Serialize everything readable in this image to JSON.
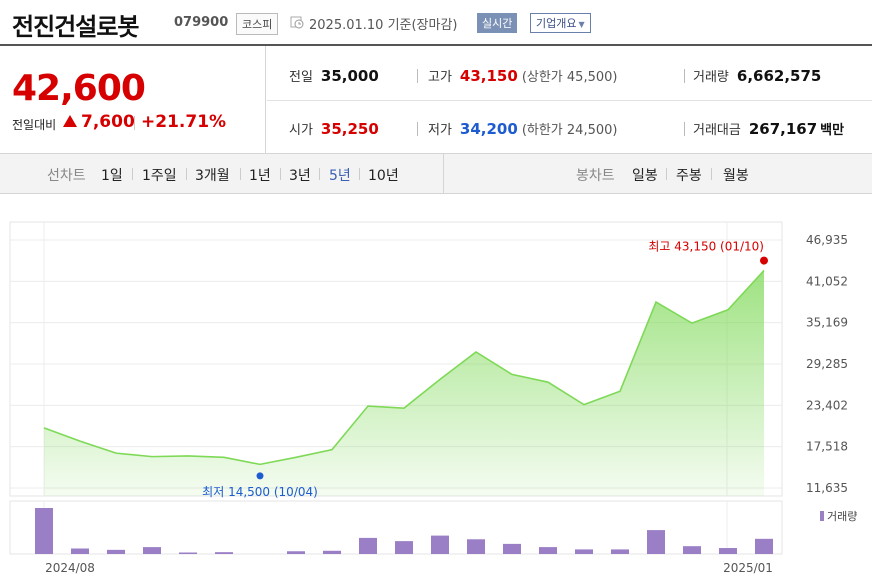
{
  "header": {
    "stock_name": "전진건설로봇",
    "stock_code": "079900",
    "market": "코스피",
    "date_text": "2025.01.10 기준(장마감)",
    "realtime_label": "실시간",
    "company_overview": "기업개요"
  },
  "summary": {
    "price": "42,600",
    "change_label": "전일대비",
    "change_value": "7,600",
    "change_percent": "+21.71%",
    "prev_close_label": "전일",
    "prev_close": "35,000",
    "high_label": "고가",
    "high": "43,150",
    "upper_limit": "(상한가 45,500)",
    "volume_label": "거래량",
    "volume": "6,662,575",
    "open_label": "시가",
    "open": "35,250",
    "low_label": "저가",
    "low": "34,200",
    "lower_limit": "(하한가 24,500)",
    "trade_value_label": "거래대금",
    "trade_value": "267,167",
    "trade_value_unit": "백만"
  },
  "tabs": {
    "line_label": "선차트",
    "line_periods": [
      "1일",
      "1주일",
      "3개월",
      "1년",
      "3년",
      "5년",
      "10년"
    ],
    "active_period": "5년",
    "candle_label": "봉차트",
    "candle_periods": [
      "일봉",
      "주봉",
      "월봉"
    ]
  },
  "colors": {
    "up": "#d60000",
    "down": "#1d5bd1",
    "line": "#7ed957",
    "volume_bar": "#9b7fc6",
    "active_tab": "#3a5fb4"
  },
  "chart_data": {
    "type": "area",
    "y_ticks": [
      "46,935",
      "41,052",
      "35,169",
      "29,285",
      "23,402",
      "17,518",
      "11,635"
    ],
    "ylim": [
      11635,
      46935
    ],
    "x_labels": [
      "2024/08",
      "2025/01"
    ],
    "price_series": [
      20200,
      18300,
      16600,
      16100,
      16200,
      16000,
      15000,
      16000,
      17100,
      23300,
      23000,
      27100,
      31000,
      27800,
      26700,
      23500,
      25400,
      38100,
      35100,
      37000,
      42600
    ],
    "high_annotation": "최고 43,150 (01/10)",
    "low_annotation": "최저 14,500 (10/04)",
    "high_value": 43150,
    "low_value": 14500,
    "volume_legend": "거래량",
    "volume_series": [
      100,
      12,
      9,
      15,
      3,
      4,
      0,
      6,
      7,
      35,
      28,
      40,
      32,
      22,
      15,
      10,
      10,
      52,
      17,
      13,
      33
    ],
    "grid": true
  }
}
